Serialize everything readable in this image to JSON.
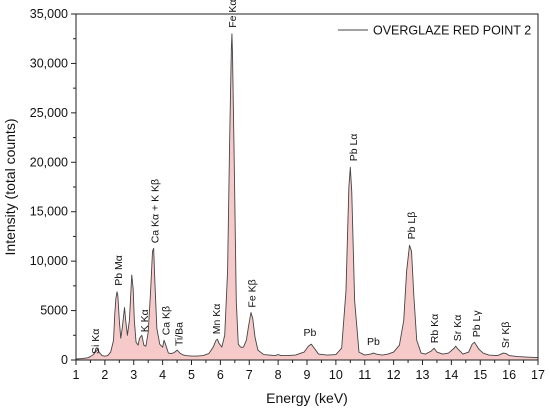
{
  "chart_data": {
    "type": "area",
    "title": "",
    "xlabel": "Energy (keV)",
    "ylabel": "Intensity (total counts)",
    "xlim": [
      1,
      17
    ],
    "ylim": [
      0,
      35000
    ],
    "x_ticks": [
      1,
      2,
      3,
      4,
      5,
      6,
      7,
      8,
      9,
      10,
      11,
      12,
      13,
      14,
      15,
      16,
      17
    ],
    "x_tick_labels": [
      "1",
      "2",
      "3",
      "4",
      "5",
      "6",
      "7",
      "8",
      "9",
      "10",
      "11",
      "12",
      "13",
      "14",
      "15",
      "16",
      "17"
    ],
    "y_ticks": [
      0,
      5000,
      10000,
      15000,
      20000,
      25000,
      30000,
      35000
    ],
    "y_tick_labels": [
      "0",
      "5000",
      "10,000",
      "15,000",
      "20,000",
      "25,000",
      "30,000",
      "35,000"
    ],
    "grid": false,
    "legend_position": "top-right",
    "series_color": "#444444",
    "fill_color": "#f7caca",
    "series": [
      {
        "name": "OVERGLAZE RED POINT 2",
        "x": [
          1.0,
          1.2,
          1.4,
          1.5,
          1.6,
          1.7,
          1.75,
          1.8,
          1.9,
          2.0,
          2.1,
          2.2,
          2.3,
          2.34,
          2.38,
          2.42,
          2.45,
          2.5,
          2.55,
          2.6,
          2.68,
          2.72,
          2.78,
          2.85,
          2.93,
          2.98,
          3.02,
          3.08,
          3.15,
          3.2,
          3.28,
          3.35,
          3.42,
          3.5,
          3.58,
          3.65,
          3.69,
          3.73,
          3.8,
          3.9,
          4.0,
          4.05,
          4.1,
          4.2,
          4.3,
          4.4,
          4.5,
          4.6,
          4.7,
          4.8,
          5.0,
          5.2,
          5.4,
          5.6,
          5.75,
          5.85,
          5.9,
          5.95,
          6.05,
          6.15,
          6.25,
          6.32,
          6.38,
          6.4,
          6.42,
          6.48,
          6.55,
          6.62,
          6.7,
          6.8,
          6.9,
          6.98,
          7.06,
          7.12,
          7.2,
          7.3,
          7.5,
          7.7,
          7.9,
          8.0,
          8.1,
          8.3,
          8.6,
          8.9,
          9.05,
          9.15,
          9.25,
          9.4,
          9.7,
          10.0,
          10.2,
          10.35,
          10.45,
          10.5,
          10.55,
          10.65,
          10.8,
          11.0,
          11.2,
          11.3,
          11.4,
          11.6,
          11.8,
          12.0,
          12.2,
          12.35,
          12.45,
          12.55,
          12.62,
          12.7,
          12.8,
          12.95,
          13.1,
          13.3,
          13.4,
          13.5,
          13.7,
          13.9,
          14.1,
          14.15,
          14.2,
          14.4,
          14.6,
          14.72,
          14.8,
          14.95,
          15.1,
          15.3,
          15.6,
          15.8,
          15.9,
          16.0,
          16.3,
          16.6,
          17.0
        ],
        "y": [
          100,
          150,
          220,
          350,
          550,
          900,
          1100,
          800,
          450,
          380,
          450,
          800,
          2000,
          4500,
          6200,
          6900,
          6500,
          4000,
          2200,
          3200,
          5300,
          4000,
          2500,
          4000,
          8600,
          7200,
          4000,
          1800,
          1500,
          2200,
          2500,
          1500,
          1400,
          2800,
          6800,
          11000,
          11300,
          8000,
          3200,
          1600,
          1300,
          2000,
          1600,
          700,
          650,
          750,
          1000,
          700,
          520,
          450,
          400,
          400,
          450,
          650,
          1300,
          2000,
          2100,
          1700,
          1300,
          2500,
          9000,
          22000,
          31500,
          33000,
          31000,
          20000,
          6000,
          1600,
          1300,
          1300,
          2000,
          3500,
          4800,
          4200,
          2300,
          1000,
          550,
          500,
          450,
          550,
          450,
          450,
          500,
          800,
          1400,
          1600,
          1200,
          600,
          500,
          550,
          1200,
          7000,
          17500,
          19500,
          17000,
          6000,
          800,
          500,
          600,
          700,
          600,
          500,
          600,
          800,
          1500,
          4000,
          9000,
          11600,
          11000,
          6500,
          2000,
          700,
          600,
          900,
          1200,
          800,
          600,
          700,
          1200,
          1400,
          1200,
          600,
          800,
          1600,
          1800,
          1100,
          700,
          500,
          450,
          700,
          650,
          450,
          350,
          300,
          250
        ]
      }
    ],
    "annotations": [
      {
        "text": "Si Kα",
        "x": 1.65,
        "y": 400,
        "rotate": -90
      },
      {
        "text": "Pb Mα",
        "x": 2.45,
        "y": 7300,
        "rotate": -90
      },
      {
        "text": "K Kα",
        "x": 3.35,
        "y": 2600,
        "rotate": -90
      },
      {
        "text": "Ca Kα + K Kβ",
        "x": 3.72,
        "y": 11600,
        "rotate": -90
      },
      {
        "text": "Ca Kβ",
        "x": 4.1,
        "y": 2300,
        "rotate": -90
      },
      {
        "text": "Ti/Ba",
        "x": 4.55,
        "y": 1200,
        "rotate": -90
      },
      {
        "text": "Mn Kα",
        "x": 5.85,
        "y": 2400,
        "rotate": -90
      },
      {
        "text": "Fe Kα",
        "x": 6.4,
        "y": 33400,
        "rotate": -90
      },
      {
        "text": "Fe Kβ",
        "x": 7.08,
        "y": 5100,
        "rotate": -90
      },
      {
        "text": "Pb",
        "x": 9.1,
        "y": 2100,
        "rotate": 0
      },
      {
        "text": "Pb Lα",
        "x": 10.6,
        "y": 19900,
        "rotate": -90
      },
      {
        "text": "Pb",
        "x": 11.3,
        "y": 1200,
        "rotate": 0
      },
      {
        "text": "Pb Lβ",
        "x": 12.6,
        "y": 12000,
        "rotate": -90
      },
      {
        "text": "Rb Kα",
        "x": 13.4,
        "y": 1500,
        "rotate": -90
      },
      {
        "text": "Sr Kα",
        "x": 14.2,
        "y": 1700,
        "rotate": -90
      },
      {
        "text": "Pb Lγ",
        "x": 14.85,
        "y": 2100,
        "rotate": -90
      },
      {
        "text": "Sr Kβ",
        "x": 15.85,
        "y": 1000,
        "rotate": -90
      }
    ]
  }
}
